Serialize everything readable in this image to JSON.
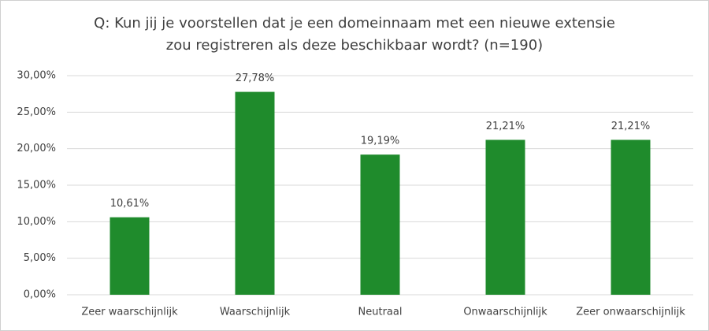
{
  "chart_data": {
    "type": "bar",
    "title": [
      "Q: Kun jij je voorstellen dat je een domeinnaam met een nieuwe extensie",
      "zou registreren als deze beschikbaar wordt? (n=190)"
    ],
    "categories": [
      "Zeer waarschijnlijk",
      "Waarschijnlijk",
      "Neutraal",
      "Onwaarschijnlijk",
      "Zeer onwaarschijnlijk"
    ],
    "values": [
      10.61,
      27.78,
      19.19,
      21.21,
      21.21
    ],
    "value_labels": [
      "10,61%",
      "27,78%",
      "19,19%",
      "21,21%",
      "21,21%"
    ],
    "color": "#1f8b2c",
    "ylim": [
      0,
      30
    ],
    "yticks": [
      {
        "value": 0,
        "label": "0,00%"
      },
      {
        "value": 5,
        "label": "5,00%"
      },
      {
        "value": 10,
        "label": "10,00%"
      },
      {
        "value": 15,
        "label": "15,00%"
      },
      {
        "value": 20,
        "label": "20,00%"
      },
      {
        "value": 25,
        "label": "25,00%"
      },
      {
        "value": 30,
        "label": "30,00%"
      }
    ],
    "grid": true
  }
}
